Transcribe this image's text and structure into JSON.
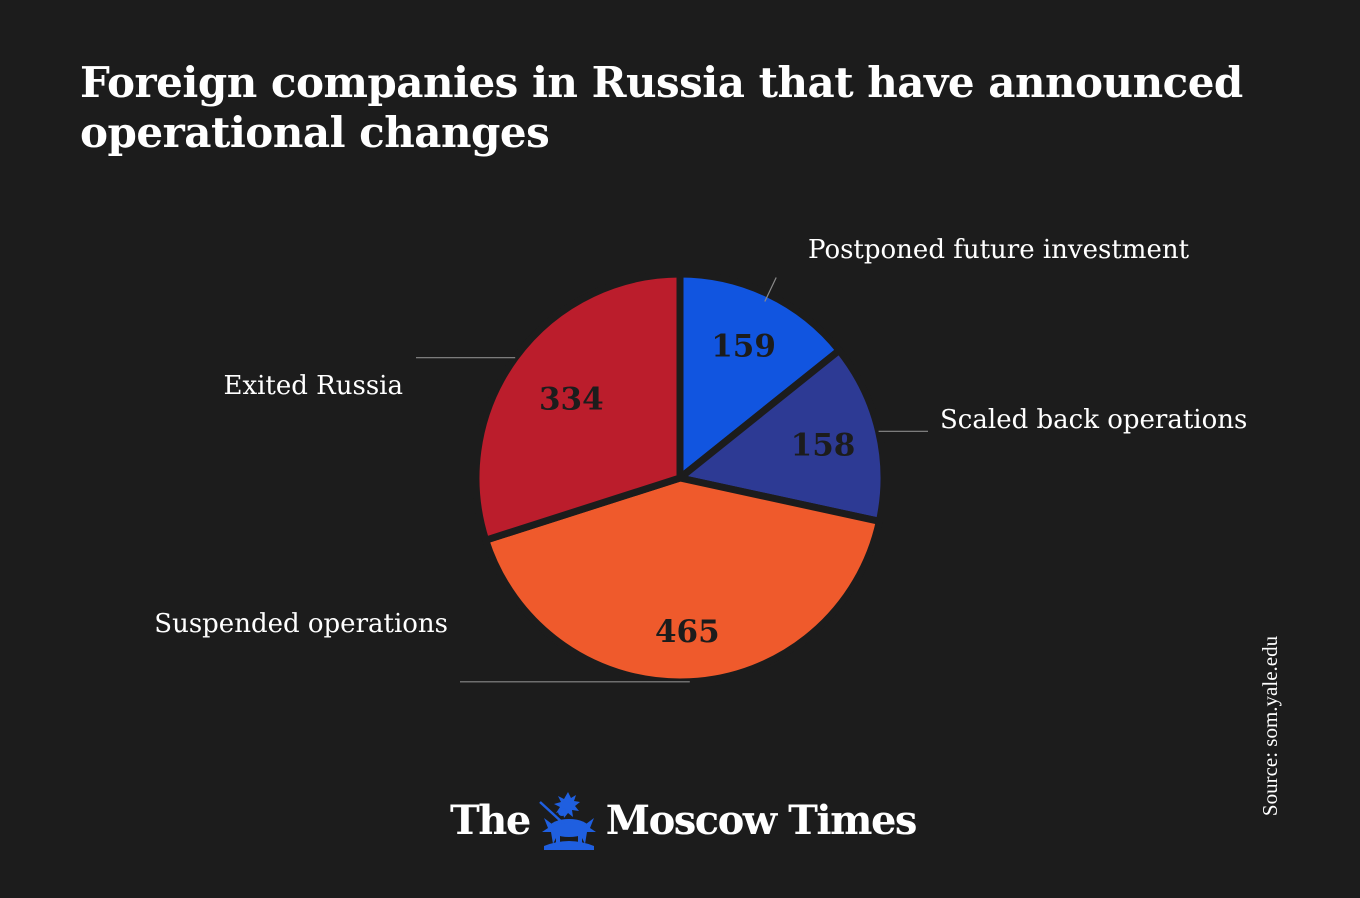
{
  "title_lines": [
    "Foreign companies in Russia that have announced",
    "operational changes"
  ],
  "source": "Source: som.yale.edu",
  "logo": {
    "part1": "The",
    "part2": "Moscow Times",
    "emblem_icon": "st-george-emblem-icon"
  },
  "colors": {
    "background": "#1c1c1c",
    "postponed": "#1155e0",
    "scaled_back": "#2d3a94",
    "suspended": "#ef5a2c",
    "exited": "#bb1d2c",
    "emblem": "#1f5fe0",
    "text": "#ffffff",
    "value_text": "#1c1c1c"
  },
  "chart_data": {
    "type": "pie",
    "title": "Foreign companies in Russia that have announced operational changes",
    "start": "12 o'clock",
    "direction": "clockwise",
    "slices": [
      {
        "label": "Postponed future investment",
        "value": 159,
        "color": "#1155e0"
      },
      {
        "label": "Scaled back operations",
        "value": 158,
        "color": "#2d3a94"
      },
      {
        "label": "Suspended operations",
        "value": 465,
        "color": "#ef5a2c"
      },
      {
        "label": "Exited Russia",
        "value": 334,
        "color": "#bb1d2c"
      }
    ]
  }
}
